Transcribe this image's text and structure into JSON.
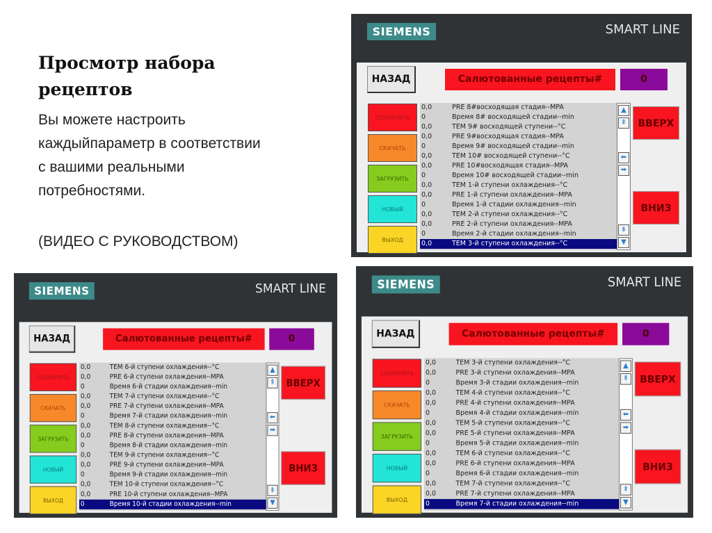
{
  "slide": {
    "title": "Просмотр набора рецептов",
    "body": "Вы можете настроить каждыйпараметр в соответствии с вашими реальными потребностями.",
    "video": "(ВИДЕО С РУКОВОДСТВОМ)"
  },
  "common": {
    "logo": "SIEMENS",
    "model": "SMART LINE",
    "back": "НАЗАД",
    "recipe_title": "Салютованные рецепты#",
    "recipe_number": "0",
    "buttons": [
      "СОХРАНЯТЬ",
      "СКАЧАТЬ",
      "ЗАГРУЗИТЬ",
      "НОВЫЙ",
      "ВЫХОД"
    ],
    "button_colors": [
      "#f8151f",
      "#f7892a",
      "#86cc1e",
      "#22e5d8",
      "#fbd526"
    ],
    "up": "ВВЕРХ",
    "down": "ВНИЗ",
    "scroll_icons": [
      "scroll-up-icon",
      "page-up-icon",
      "arrow-left-icon",
      "arrow-right-icon",
      "page-down-icon",
      "scroll-down-icon"
    ]
  },
  "panels": [
    {
      "rows": [
        {
          "value": "0,0",
          "label": "PRE 8#восходящая стадия--MPA"
        },
        {
          "value": "0",
          "label": "Время 8# восходящей стадии--min"
        },
        {
          "value": "0,0",
          "label": "TEM 9# восходящей ступени--°C"
        },
        {
          "value": "0,0",
          "label": "PRE 9#восходящая стадия--MPA"
        },
        {
          "value": "0",
          "label": "Время 9# восходящей стадии--min"
        },
        {
          "value": "0,0",
          "label": "TEM 10# восходящей ступени--°C"
        },
        {
          "value": "0,0",
          "label": "PRE 10#восходящая стадия--MPA"
        },
        {
          "value": "0",
          "label": "Время 10# восходящей стадии--min"
        },
        {
          "value": "0,0",
          "label": "TEM 1-й ступени охлаждения--°C"
        },
        {
          "value": "0,0",
          "label": "PRE 1-й ступени охлаждения--MPA"
        },
        {
          "value": "0",
          "label": "Время 1-й стадии охлаждения--min"
        },
        {
          "value": "0,0",
          "label": "TEM 2-й ступени охлаждения--°C"
        },
        {
          "value": "0,0",
          "label": "PRE 2-й ступени охлаждения--MPA"
        },
        {
          "value": "0",
          "label": "Время 2-й стадии охлаждения--min"
        },
        {
          "value": "0,0",
          "label": "TEM 3-й ступени охлаждения--°C"
        }
      ]
    },
    {
      "rows": [
        {
          "value": "0,0",
          "label": "TEM 6-й ступени охлаждения--°C"
        },
        {
          "value": "0,0",
          "label": "PRE 6-й ступени охлаждения--MPA"
        },
        {
          "value": "0",
          "label": "Время 6-й стадии охлаждения--min"
        },
        {
          "value": "0,0",
          "label": "TEM 7-й ступени охлаждения--°C"
        },
        {
          "value": "0,0",
          "label": "PRE 7-й ступени охлаждения--MPA"
        },
        {
          "value": "0",
          "label": "Время 7-й стадии охлаждения--min"
        },
        {
          "value": "0,0",
          "label": "TEM 8-й ступени охлаждения--°C"
        },
        {
          "value": "0,0",
          "label": "PRE 8-й ступени охлаждения--MPA"
        },
        {
          "value": "0",
          "label": "Время 8-й стадии охлаждения--min"
        },
        {
          "value": "0,0",
          "label": "TEM 9-й ступени охлаждения--°C"
        },
        {
          "value": "0,0",
          "label": "PRE 9-й ступени охлаждения--MPA"
        },
        {
          "value": "0",
          "label": "Время 9-й стадии охлаждения--min"
        },
        {
          "value": "0,0",
          "label": "TEM 10-й ступени охлаждения--°C"
        },
        {
          "value": "0,0",
          "label": "PRE 10-й ступени охлаждения--MPA"
        },
        {
          "value": "0",
          "label": "Время 10-й стадии охлаждения--min"
        }
      ]
    },
    {
      "rows": [
        {
          "value": "0,0",
          "label": "TEM 3-й ступени охлаждения--°C"
        },
        {
          "value": "0,0",
          "label": "PRE 3-й ступени охлаждения--MPA"
        },
        {
          "value": "0",
          "label": "Время 3-й стадии охлаждения--min"
        },
        {
          "value": "0,0",
          "label": "TEM 4-й ступени охлаждения--°C"
        },
        {
          "value": "0,0",
          "label": "PRE 4-й ступени охлаждения--MPA"
        },
        {
          "value": "0",
          "label": "Время 4-й стадии охлаждения--min"
        },
        {
          "value": "0,0",
          "label": "TEM 5-й ступени охлаждения--°C"
        },
        {
          "value": "0,0",
          "label": "PRE 5-й ступени охлаждения--MPA"
        },
        {
          "value": "0",
          "label": "Время 5-й стадии охлаждения--min"
        },
        {
          "value": "0,0",
          "label": "TEM 6-й ступени охлаждения--°C"
        },
        {
          "value": "0,0",
          "label": "PRE 6-й ступени охлаждения--MPA"
        },
        {
          "value": "0",
          "label": "Время 6-й стадии охлаждения--min"
        },
        {
          "value": "0,0",
          "label": "TEM 7-й ступени охлаждения--°C"
        },
        {
          "value": "0,0",
          "label": "PRE 7-й ступени охлаждения--MPA"
        },
        {
          "value": "0",
          "label": "Время 7-й стадии охлаждения--min"
        }
      ]
    }
  ]
}
